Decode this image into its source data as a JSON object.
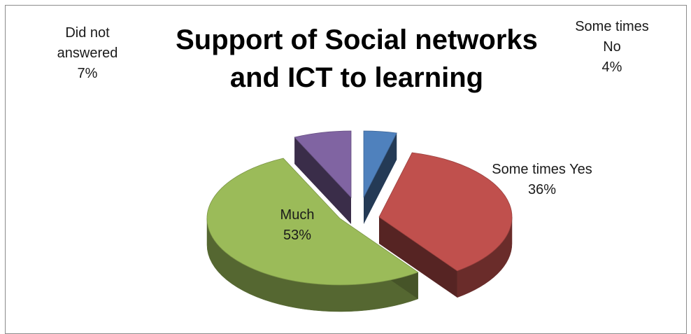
{
  "chart_data": {
    "type": "pie",
    "title_lines": [
      "Support of Social networks",
      "and  ICT to learning"
    ],
    "slices": [
      {
        "label_lines": [
          "Some times",
          "No"
        ],
        "percent_label": "4%",
        "value": 4,
        "color": "#4f81bd"
      },
      {
        "label_lines": [
          "Some times Yes"
        ],
        "percent_label": "36%",
        "value": 36,
        "color": "#c0504d"
      },
      {
        "label_lines": [
          "Much"
        ],
        "percent_label": "53%",
        "value": 53,
        "color": "#9bbb59"
      },
      {
        "label_lines": [
          "Did not",
          "answered"
        ],
        "percent_label": "7%",
        "value": 7,
        "color": "#8064a2"
      }
    ],
    "style": "3d-exploded",
    "legend": "none"
  }
}
